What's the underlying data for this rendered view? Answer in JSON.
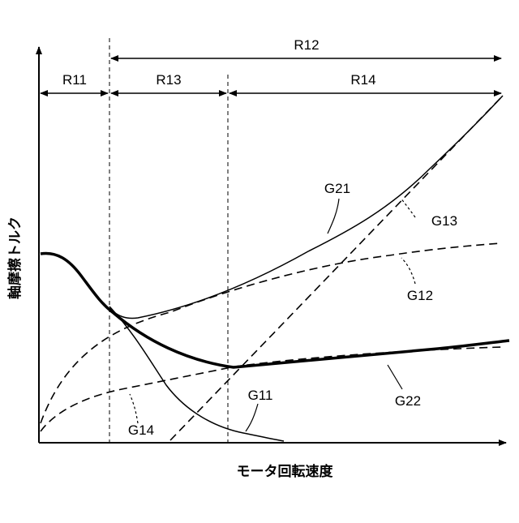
{
  "axes": {
    "x_label": "モータ回転速度",
    "y_label": "軸摩擦トルク"
  },
  "regions": {
    "r11": "R11",
    "r12": "R12",
    "r13": "R13",
    "r14": "R14"
  },
  "curves": {
    "g11": "G11",
    "g12": "G12",
    "g13": "G13",
    "g14": "G14",
    "g21": "G21",
    "g22": "G22"
  },
  "colors": {
    "ink": "#000000",
    "background": "#ffffff"
  }
}
